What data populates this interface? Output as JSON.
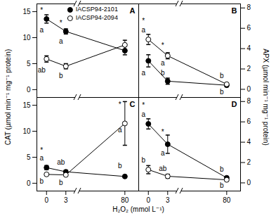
{
  "chart_data": [
    {
      "type": "line",
      "title": "A",
      "y_label": "CAT (µmol min⁻¹ mg⁻¹ protein)",
      "tick_labels": "y",
      "legend": "top",
      "x": [
        0,
        3,
        80
      ],
      "xlim": [
        -1.5,
        84
      ],
      "xticks": [
        0,
        3,
        80
      ],
      "ylim": [
        -1.5,
        16.5
      ],
      "yticks": [
        0,
        5,
        10,
        15
      ],
      "series": [
        {
          "name": "IACSP94-2101",
          "color": "#000000",
          "marker": "filled_circle",
          "values": [
            13.6,
            11.2,
            7.5
          ],
          "errors": [
            0.8,
            0.5,
            0.8
          ]
        },
        {
          "name": "IACSP94-2094",
          "color": "#000000",
          "marker": "open_circle",
          "values": [
            5.9,
            4.5,
            8.6
          ],
          "errors": [
            0.6,
            0.5,
            0.9
          ]
        }
      ],
      "annotations": [
        {
          "text": "*",
          "x": 0,
          "y": 15.3
        },
        {
          "text": "a",
          "x": 0,
          "y": 11.5
        },
        {
          "text": "ab",
          "x": 0,
          "y": 3.8
        },
        {
          "text": "*",
          "x": 3,
          "y": 12.8
        },
        {
          "text": "a",
          "x": 3,
          "y": 9.3
        },
        {
          "text": "b",
          "x": 3,
          "y": 2.7
        }
      ]
    },
    {
      "type": "line",
      "title": "B",
      "y_label": "APX (µmol min⁻¹ mg⁻¹ protein)",
      "tick_labels": "y",
      "x": [
        0,
        3,
        80
      ],
      "xlim": [
        -1.5,
        84
      ],
      "xticks": [
        0,
        3,
        80
      ],
      "ylim": [
        -0.8,
        8.4
      ],
      "yticks": [
        0,
        2,
        4,
        6,
        8
      ],
      "series": [
        {
          "name": "IACSP94-2101",
          "color": "#000000",
          "marker": "filled_circle",
          "values": [
            2.8,
            0.8,
            0.4
          ],
          "errors": [
            0.6,
            0.3,
            0.1
          ]
        },
        {
          "name": "IACSP94-2094",
          "color": "#000000",
          "marker": "open_circle",
          "values": [
            4.9,
            3.3,
            0.5
          ],
          "errors": [
            0.5,
            0.3,
            0.1
          ]
        }
      ],
      "annotations": [
        {
          "text": "*",
          "x": 0,
          "y": 6.7
        },
        {
          "text": "a",
          "x": 0,
          "y": 5.8
        },
        {
          "text": "a",
          "x": 0,
          "y": 1.6
        },
        {
          "text": "*",
          "x": 3,
          "y": 4.3
        },
        {
          "text": "a",
          "x": 3,
          "y": 2.6
        },
        {
          "text": "b",
          "x": 3,
          "y": 1.6
        },
        {
          "text": "b",
          "x": 80,
          "y": 1.3
        },
        {
          "text": "b",
          "x": 80,
          "y": -0.3
        }
      ]
    },
    {
      "type": "line",
      "title": "C",
      "x_label": "H₂O₂ (mmol L⁻¹)",
      "x": [
        0,
        3,
        80
      ],
      "xlim": [
        -1.5,
        84
      ],
      "xticks": [
        0,
        3,
        80
      ],
      "ylim": [
        -1.5,
        16.5
      ],
      "yticks": [
        0,
        5,
        10,
        15
      ],
      "series": [
        {
          "name": "IACSP94-2101",
          "color": "#000000",
          "marker": "filled_circle",
          "values": [
            3.0,
            2.2,
            1.3
          ],
          "errors": [
            0.4,
            0.3,
            0.2
          ]
        },
        {
          "name": "IACSP94-2094",
          "color": "#000000",
          "marker": "open_circle",
          "values": [
            1.7,
            1.6,
            11.5
          ],
          "errors": [
            0.2,
            0.2,
            4.2
          ]
        }
      ],
      "annotations": [
        {
          "text": "*",
          "x": 0,
          "y": 6.3
        },
        {
          "text": "a",
          "x": 0,
          "y": 4.8
        },
        {
          "text": "b",
          "x": 0,
          "y": 0.3
        },
        {
          "text": "ab",
          "x": 3,
          "y": 4.0
        },
        {
          "text": "b",
          "x": 3,
          "y": 0.1
        },
        {
          "text": "*",
          "x": 80,
          "y": 15.1
        },
        {
          "text": "a",
          "x": 80,
          "y": 10.2
        },
        {
          "text": "b",
          "x": 80,
          "y": 3.3
        }
      ]
    },
    {
      "type": "line",
      "title": "D",
      "x": [
        0,
        3,
        80
      ],
      "xlim": [
        -1.5,
        84
      ],
      "xticks": [
        0,
        3,
        80
      ],
      "ylim": [
        -0.8,
        8.4
      ],
      "yticks": [
        0,
        2,
        4,
        6,
        8
      ],
      "series": [
        {
          "name": "IACSP94-2101",
          "color": "#000000",
          "marker": "filled_circle",
          "values": [
            5.8,
            3.8,
            0.5
          ],
          "errors": [
            0.5,
            0.9,
            0.1
          ]
        },
        {
          "name": "IACSP94-2094",
          "color": "#000000",
          "marker": "open_circle",
          "values": [
            1.3,
            0.65,
            0.3
          ],
          "errors": [
            0.4,
            0.2,
            0.1
          ]
        }
      ],
      "annotations": [
        {
          "text": "*",
          "x": 0,
          "y": 7.6
        },
        {
          "text": "a",
          "x": 0,
          "y": 6.7
        },
        {
          "text": "b",
          "x": 0,
          "y": 2.2
        },
        {
          "text": "*",
          "x": 3,
          "y": 5.0
        },
        {
          "text": "a",
          "x": 3,
          "y": 2.9
        },
        {
          "text": "ab",
          "x": 3,
          "y": 1.4
        },
        {
          "text": "b",
          "x": 80,
          "y": 1.3
        },
        {
          "text": "b",
          "x": 80,
          "y": -0.3
        }
      ]
    }
  ]
}
